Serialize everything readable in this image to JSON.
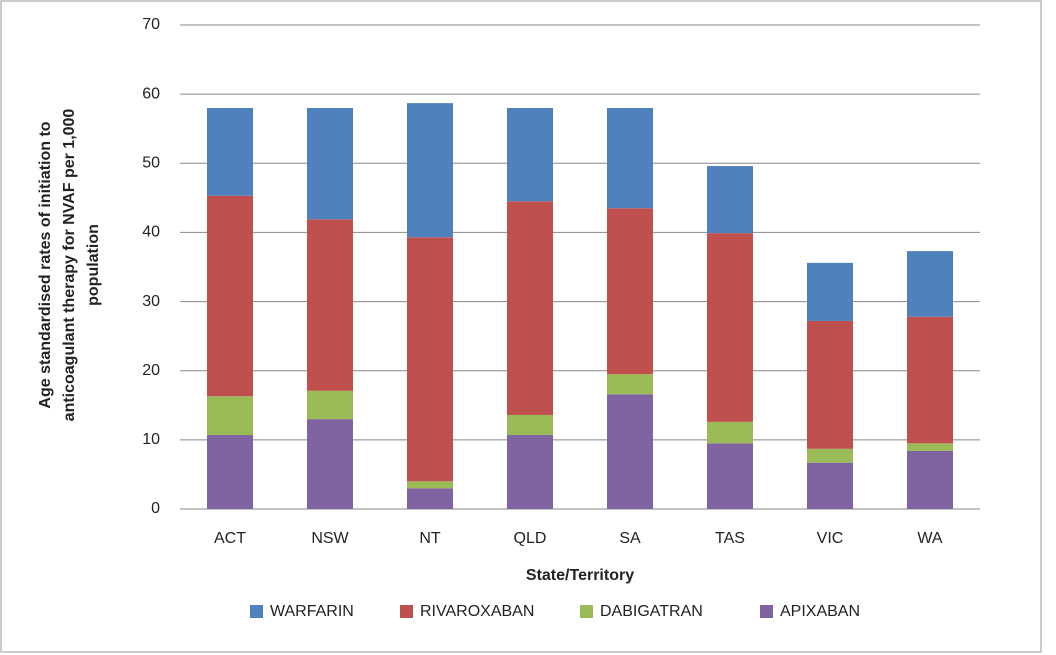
{
  "chart_data": {
    "type": "stacked_bar",
    "ylabel": [
      "Age standardised rates of initiation to",
      "anticoagulant therapy for NVAF per 1,000",
      "population"
    ],
    "xlabel": "State/Territory",
    "categories": [
      "ACT",
      "NSW",
      "NT",
      "QLD",
      "SA",
      "TAS",
      "VIC",
      "WA"
    ],
    "series": [
      {
        "name": "WARFARIN",
        "color": "#4f81bd",
        "values": [
          12.7,
          16.1,
          19.4,
          13.5,
          14.5,
          9.7,
          8.4,
          9.5
        ]
      },
      {
        "name": "RIVAROXABAN",
        "color": "#c0504d",
        "values": [
          29.0,
          24.8,
          35.3,
          30.9,
          24.0,
          27.3,
          18.5,
          18.3
        ]
      },
      {
        "name": "DABIGATRAN",
        "color": "#9bbb59",
        "values": [
          5.6,
          4.1,
          1.0,
          2.9,
          2.9,
          3.1,
          2.0,
          1.1
        ]
      },
      {
        "name": "APIXABAN",
        "color": "#8064a2",
        "values": [
          10.7,
          13.0,
          3.0,
          10.7,
          16.6,
          9.5,
          6.7,
          8.4
        ]
      }
    ],
    "ylim": [
      0,
      70
    ],
    "yticks": [
      0,
      10,
      20,
      30,
      40,
      50,
      60,
      70
    ],
    "grid": true,
    "legend": "bottom"
  }
}
